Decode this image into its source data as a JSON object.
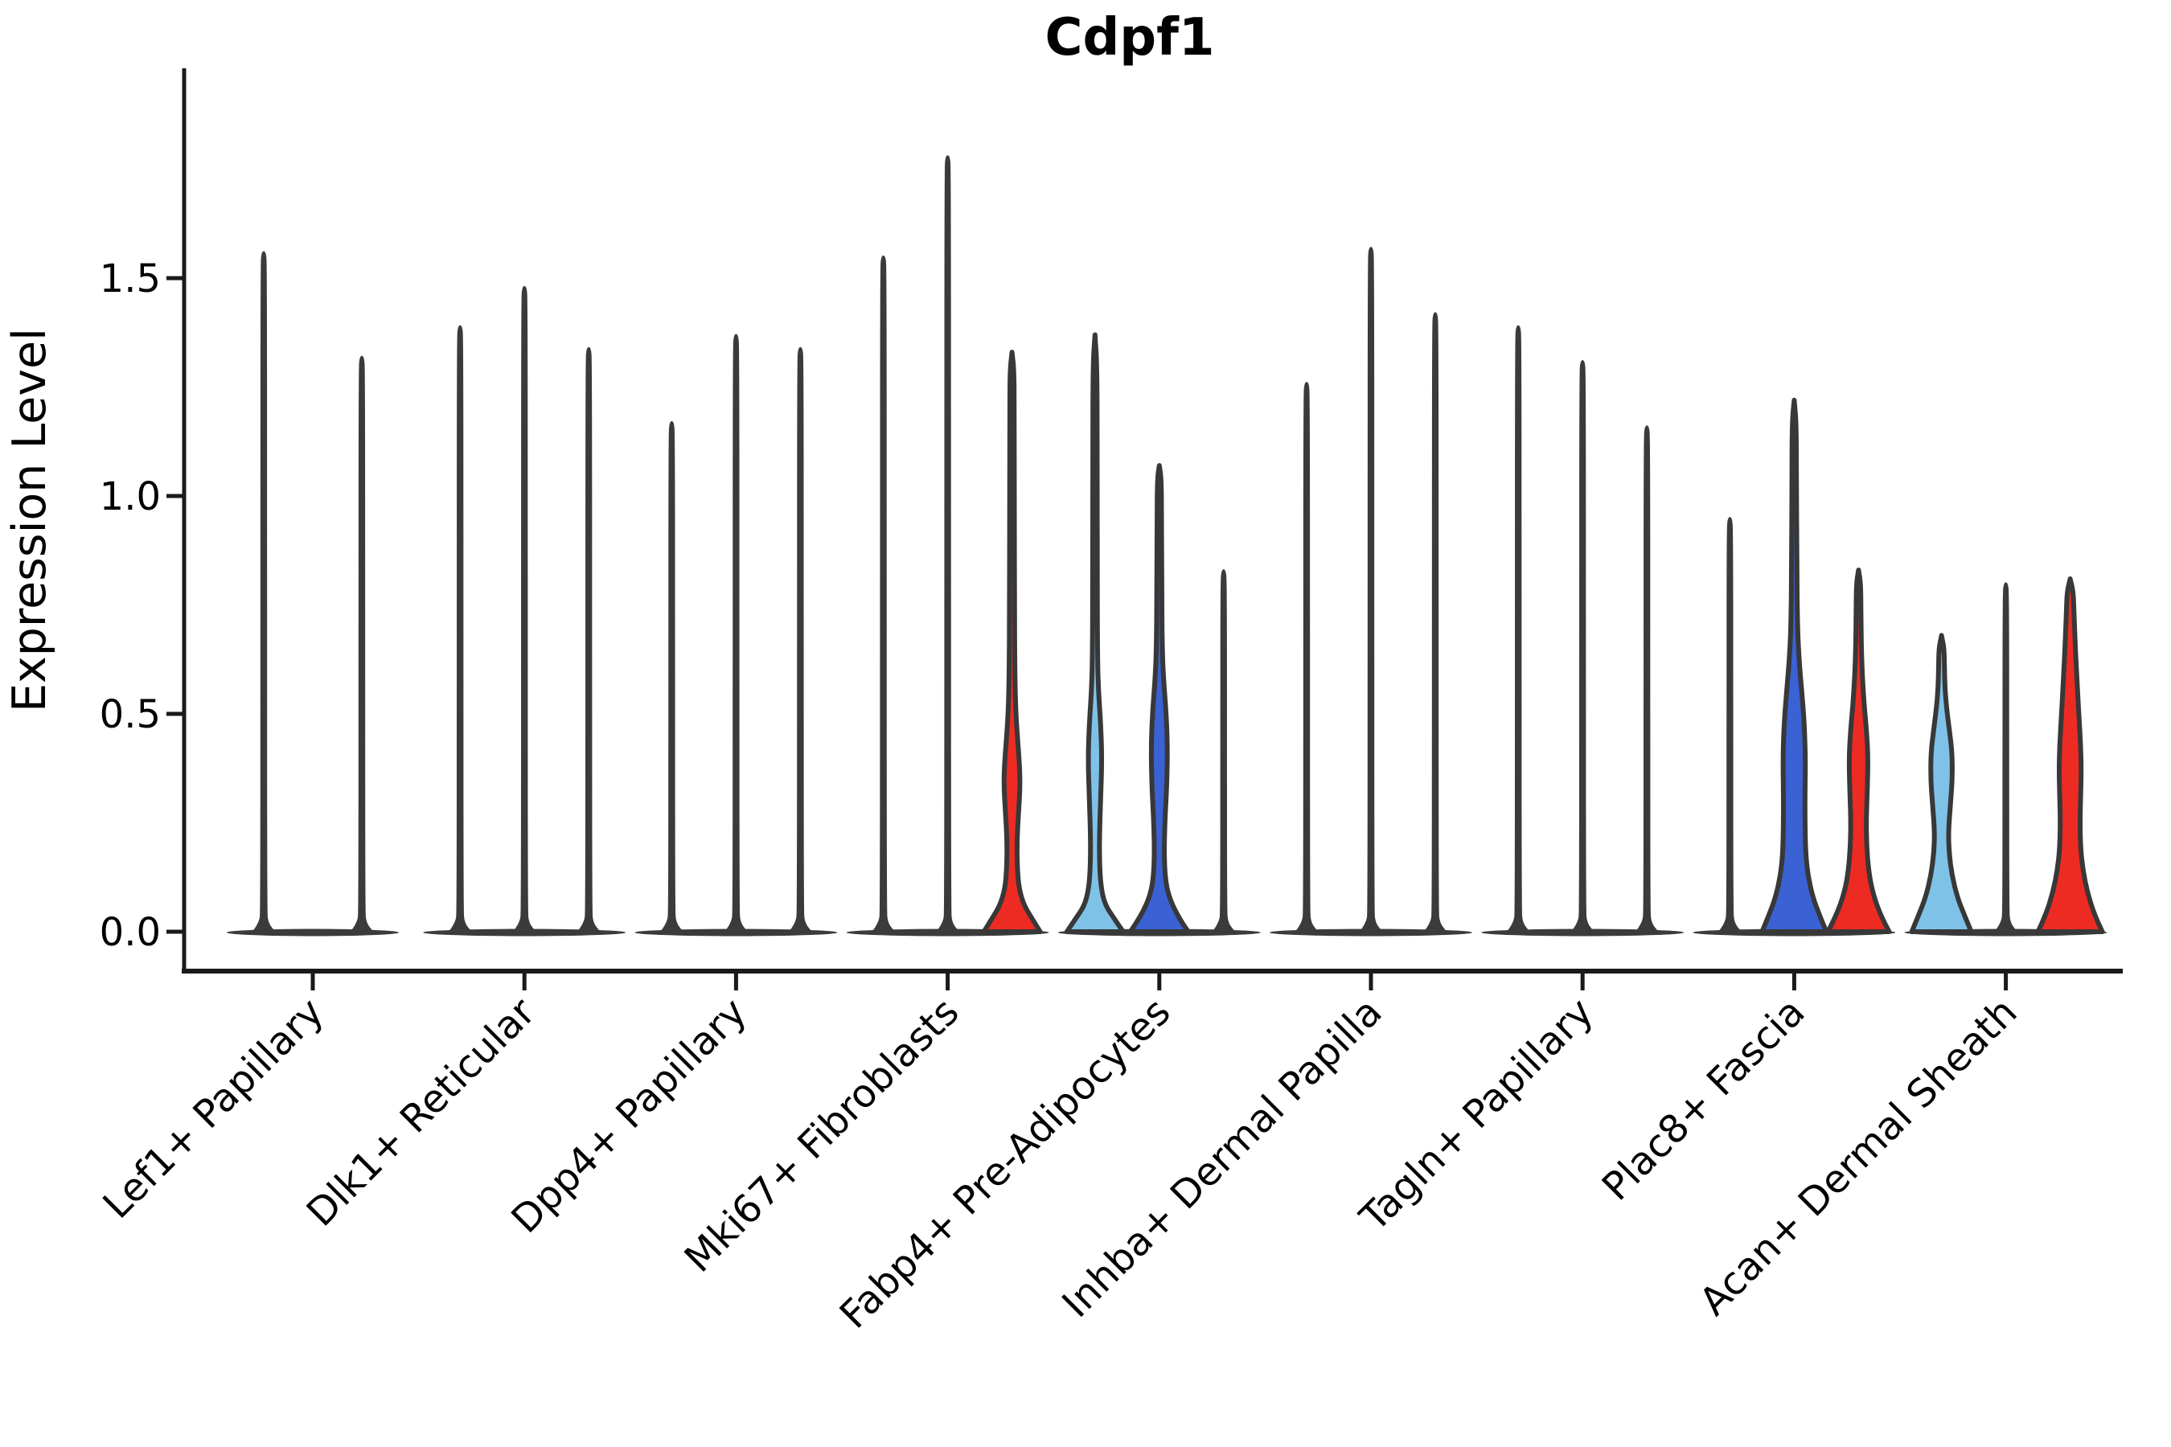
{
  "page": {
    "background": "#ffffff"
  },
  "chart_data": {
    "type": "violin",
    "title": "Cdpf1",
    "ylabel": "Expression Level",
    "xlabel": "",
    "ylim": [
      -0.09,
      1.99
    ],
    "yticks": [
      0.0,
      0.5,
      1.0,
      1.5
    ],
    "ytick_labels": [
      "0.0",
      "0.5",
      "1.0",
      "1.5"
    ],
    "grid": false,
    "legend": "none",
    "xtick_rotation": 45,
    "categories": [
      "Lef1+ Papillary",
      "Dlk1+ Reticular",
      "Dpp4+ Papillary",
      "Mki67+ Fibroblasts",
      "Fabp4+ Pre-Adipocytes",
      "Inhba+ Dermal Papilla",
      "Tagln+ Papillary",
      "Plac8+ Fascia",
      "Acan+ Dermal Sheath"
    ],
    "palette": {
      "spike": "#3b3b3b",
      "outline": "#383838",
      "axis": "#1a1a1a",
      "red": "#ee2b23",
      "skyblue": "#7fc2e8",
      "blue": "#3a62d4"
    },
    "groups": [
      {
        "category": "Lef1+ Papillary",
        "violins": [
          {
            "kind": "spike",
            "dx": -61,
            "height": 1.56
          },
          {
            "kind": "spike",
            "dx": 61,
            "height": 1.32
          }
        ]
      },
      {
        "category": "Dlk1+ Reticular",
        "violins": [
          {
            "kind": "spike",
            "dx": -80,
            "height": 1.39
          },
          {
            "kind": "spike",
            "dx": 0,
            "height": 1.48
          },
          {
            "kind": "spike",
            "dx": 80,
            "height": 1.34
          }
        ]
      },
      {
        "category": "Dpp4+ Papillary",
        "violins": [
          {
            "kind": "spike",
            "dx": -80,
            "height": 1.17
          },
          {
            "kind": "spike",
            "dx": 0,
            "height": 1.37
          },
          {
            "kind": "spike",
            "dx": 80,
            "height": 1.34
          }
        ]
      },
      {
        "category": "Mki67+ Fibroblasts",
        "violins": [
          {
            "kind": "spike",
            "dx": -80,
            "height": 1.55
          },
          {
            "kind": "spike",
            "dx": 0,
            "height": 1.78
          },
          {
            "kind": "violin",
            "dx": 80,
            "height": 1.33,
            "color": "red",
            "profile": [
              [
                0,
                35
              ],
              [
                0.03,
                25
              ],
              [
                0.06,
                15
              ],
              [
                0.1,
                8.5
              ],
              [
                0.15,
                6.5
              ],
              [
                0.21,
                6.2
              ],
              [
                0.27,
                8
              ],
              [
                0.33,
                10
              ],
              [
                0.38,
                9.5
              ],
              [
                0.44,
                7
              ],
              [
                0.5,
                4.8
              ],
              [
                0.58,
                3.6
              ],
              [
                0.75,
                3.1
              ],
              [
                1.0,
                2.9
              ],
              [
                1.2,
                2.7
              ],
              [
                1.29,
                2.4
              ],
              [
                1.33,
                0
              ]
            ]
          }
        ]
      },
      {
        "category": "Fabp4+ Pre-Adipocytes",
        "violins": [
          {
            "kind": "violin",
            "dx": -80,
            "height": 1.37,
            "color": "skyblue",
            "profile": [
              [
                0,
                35
              ],
              [
                0.03,
                24
              ],
              [
                0.06,
                13
              ],
              [
                0.1,
                7.5
              ],
              [
                0.16,
                5.5
              ],
              [
                0.24,
                5.8
              ],
              [
                0.31,
                7.2
              ],
              [
                0.4,
                8.6
              ],
              [
                0.48,
                7
              ],
              [
                0.55,
                4.4
              ],
              [
                0.62,
                3.2
              ],
              [
                0.8,
                2.9
              ],
              [
                1.1,
                2.7
              ],
              [
                1.3,
                2.5
              ],
              [
                1.37,
                0
              ]
            ]
          },
          {
            "kind": "violin",
            "dx": 0,
            "height": 1.07,
            "color": "blue",
            "profile": [
              [
                0,
                36
              ],
              [
                0.03,
                25
              ],
              [
                0.07,
                14
              ],
              [
                0.11,
                8
              ],
              [
                0.17,
                6
              ],
              [
                0.25,
                6.8
              ],
              [
                0.33,
                9.2
              ],
              [
                0.42,
                10.2
              ],
              [
                0.5,
                8.6
              ],
              [
                0.58,
                5.2
              ],
              [
                0.65,
                3.6
              ],
              [
                0.8,
                3
              ],
              [
                0.95,
                2.8
              ],
              [
                1.04,
                2.4
              ],
              [
                1.07,
                0
              ]
            ]
          },
          {
            "kind": "spike",
            "dx": 80,
            "height": 0.83
          }
        ]
      },
      {
        "category": "Inhba+ Dermal Papilla",
        "violins": [
          {
            "kind": "spike",
            "dx": -80,
            "height": 1.26
          },
          {
            "kind": "spike",
            "dx": 0,
            "height": 1.57
          },
          {
            "kind": "spike",
            "dx": 80,
            "height": 1.42
          }
        ]
      },
      {
        "category": "Tagln+ Papillary",
        "violins": [
          {
            "kind": "spike",
            "dx": -80,
            "height": 1.39
          },
          {
            "kind": "spike",
            "dx": 0,
            "height": 1.31
          },
          {
            "kind": "spike",
            "dx": 80,
            "height": 1.16
          }
        ]
      },
      {
        "category": "Plac8+ Fascia",
        "violins": [
          {
            "kind": "spike",
            "dx": -80,
            "height": 0.95
          },
          {
            "kind": "violin",
            "dx": 0,
            "height": 1.22,
            "color": "blue",
            "profile": [
              [
                0,
                40
              ],
              [
                0.04,
                31
              ],
              [
                0.08,
                23
              ],
              [
                0.13,
                17
              ],
              [
                0.18,
                14.2
              ],
              [
                0.25,
                13.4
              ],
              [
                0.32,
                13.4
              ],
              [
                0.4,
                14
              ],
              [
                0.48,
                12.5
              ],
              [
                0.55,
                9.5
              ],
              [
                0.62,
                6.2
              ],
              [
                0.7,
                4
              ],
              [
                0.85,
                3.2
              ],
              [
                1.05,
                2.8
              ],
              [
                1.17,
                2.5
              ],
              [
                1.22,
                0
              ]
            ]
          },
          {
            "kind": "violin",
            "dx": 80,
            "height": 0.83,
            "color": "red",
            "profile": [
              [
                0,
                38
              ],
              [
                0.04,
                27
              ],
              [
                0.09,
                17.5
              ],
              [
                0.14,
                12.5
              ],
              [
                0.2,
                10
              ],
              [
                0.26,
                9.6
              ],
              [
                0.33,
                11
              ],
              [
                0.4,
                11.8
              ],
              [
                0.46,
                10
              ],
              [
                0.52,
                7
              ],
              [
                0.59,
                4.6
              ],
              [
                0.66,
                3.4
              ],
              [
                0.74,
                3
              ],
              [
                0.8,
                2.6
              ],
              [
                0.83,
                0
              ]
            ]
          }
        ]
      },
      {
        "category": "Acan+ Dermal Sheath",
        "violins": [
          {
            "kind": "violin",
            "dx": -80,
            "height": 0.68,
            "color": "skyblue",
            "profile": [
              [
                0,
                37
              ],
              [
                0.04,
                28
              ],
              [
                0.08,
                19.5
              ],
              [
                0.13,
                13
              ],
              [
                0.18,
                9.5
              ],
              [
                0.23,
                8.6
              ],
              [
                0.29,
                11
              ],
              [
                0.35,
                13.5
              ],
              [
                0.41,
                13.2
              ],
              [
                0.46,
                10
              ],
              [
                0.51,
                6.5
              ],
              [
                0.56,
                4.2
              ],
              [
                0.61,
                3.6
              ],
              [
                0.65,
                3.2
              ],
              [
                0.68,
                0
              ]
            ]
          },
          {
            "kind": "spike",
            "dx": 0,
            "height": 0.8
          },
          {
            "kind": "violin",
            "dx": 80,
            "height": 0.81,
            "color": "red",
            "profile": [
              [
                0,
                40
              ],
              [
                0.04,
                30
              ],
              [
                0.09,
                21.5
              ],
              [
                0.14,
                16
              ],
              [
                0.19,
                13
              ],
              [
                0.25,
                12.2
              ],
              [
                0.31,
                13
              ],
              [
                0.37,
                13.8
              ],
              [
                0.43,
                13
              ],
              [
                0.49,
                11
              ],
              [
                0.56,
                9
              ],
              [
                0.63,
                7
              ],
              [
                0.69,
                5.6
              ],
              [
                0.74,
                4.6
              ],
              [
                0.78,
                3.8
              ],
              [
                0.81,
                0
              ]
            ]
          }
        ]
      }
    ]
  }
}
